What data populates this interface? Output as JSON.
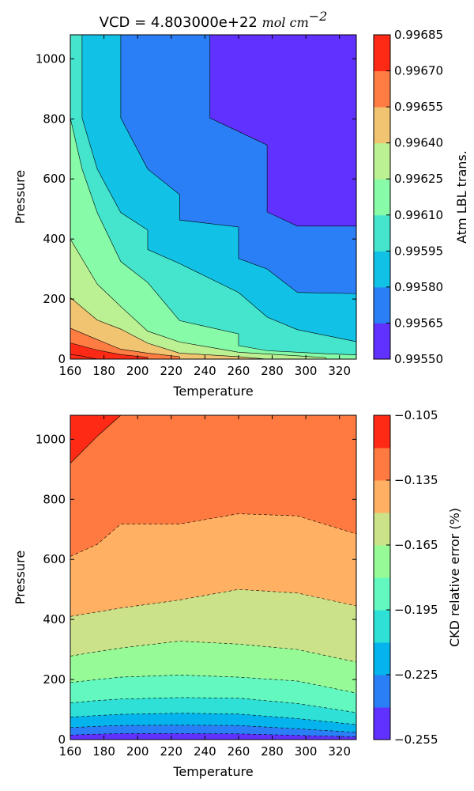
{
  "chart_data": [
    {
      "type": "contourf",
      "title_plain": "VCD = 4.803000e+22 ",
      "title_math": "mol cm",
      "title_exp": "−2",
      "xlabel": "Temperature",
      "ylabel": "Pressure",
      "xlim": [
        160,
        330
      ],
      "ylim": [
        0,
        1080
      ],
      "xticks": [
        "160",
        "180",
        "200",
        "220",
        "240",
        "260",
        "280",
        "300",
        "320"
      ],
      "yticks": [
        "0",
        "200",
        "400",
        "600",
        "800",
        "1000"
      ],
      "colorbar": {
        "label": "Atm LBL trans.",
        "ticks": [
          "0.99550",
          "0.99565",
          "0.99580",
          "0.99595",
          "0.99610",
          "0.99625",
          "0.99640",
          "0.99655",
          "0.99670",
          "0.99685"
        ],
        "colors": [
          "#6131ff",
          "#2b7ff6",
          "#12c2e6",
          "#45e5cd",
          "#87fba7",
          "#bbf093",
          "#f0c470",
          "#ff7c42",
          "#ff2a16"
        ]
      },
      "contour_levels": [
        {
          "level": 0.99565,
          "points": [
            [
              243,
              1080
            ],
            [
              243,
              803
            ],
            [
              277,
              713
            ],
            [
              277,
              490
            ],
            [
              295,
              443
            ],
            [
              330,
              443
            ]
          ]
        },
        {
          "level": 0.9958,
          "points": [
            [
              190,
              1080
            ],
            [
              190,
              803
            ],
            [
              206,
              633
            ],
            [
              225,
              548
            ],
            [
              225,
              463
            ],
            [
              260,
              440
            ],
            [
              260,
              335
            ],
            [
              277,
              300
            ],
            [
              295,
              222
            ],
            [
              330,
              218
            ]
          ]
        },
        {
          "level": 0.99595,
          "points": [
            [
              167,
              1080
            ],
            [
              167,
              803
            ],
            [
              176,
              633
            ],
            [
              190,
              488
            ],
            [
              206,
              430
            ],
            [
              206,
              365
            ],
            [
              225,
              318
            ],
            [
              260,
              222
            ],
            [
              277,
              140
            ],
            [
              295,
              98
            ],
            [
              330,
              58
            ]
          ]
        },
        {
          "level": 0.9961,
          "points": [
            [
              160,
              1080
            ],
            [
              160,
              803
            ],
            [
              167,
              633
            ],
            [
              176,
              488
            ],
            [
              190,
              325
            ],
            [
              206,
              255
            ],
            [
              225,
              128
            ],
            [
              260,
              84
            ],
            [
              260,
              45
            ],
            [
              277,
              28
            ],
            [
              312,
              18
            ],
            [
              330,
              14
            ]
          ]
        },
        {
          "level": 0.99625,
          "points": [
            [
              160,
              400
            ],
            [
              176,
              250
            ],
            [
              190,
              175
            ],
            [
              206,
              93
            ],
            [
              225,
              57
            ],
            [
              260,
              23
            ],
            [
              312,
              5
            ],
            [
              312,
              0
            ]
          ]
        },
        {
          "level": 0.9964,
          "points": [
            [
              160,
              205
            ],
            [
              176,
              130
            ],
            [
              190,
              100
            ],
            [
              206,
              53
            ],
            [
              225,
              20
            ],
            [
              260,
              8
            ],
            [
              277,
              0
            ]
          ]
        },
        {
          "level": 0.99655,
          "points": [
            [
              160,
              103
            ],
            [
              176,
              65
            ],
            [
              190,
              33
            ],
            [
              206,
              20
            ],
            [
              225,
              8
            ],
            [
              225,
              0
            ]
          ]
        },
        {
          "level": 0.9967,
          "points": [
            [
              160,
              54
            ],
            [
              176,
              30
            ],
            [
              190,
              15
            ],
            [
              206,
              6
            ],
            [
              206,
              0
            ]
          ]
        },
        {
          "level": 0.99685,
          "points": [
            [
              160,
              16
            ],
            [
              167,
              10
            ],
            [
              176,
              0
            ]
          ]
        }
      ]
    },
    {
      "type": "contourf",
      "xlabel": "Temperature",
      "ylabel": "Pressure",
      "xlim": [
        160,
        330
      ],
      "ylim": [
        0,
        1080
      ],
      "xticks": [
        "160",
        "180",
        "200",
        "220",
        "240",
        "260",
        "280",
        "300",
        "320"
      ],
      "yticks": [
        "0",
        "200",
        "400",
        "600",
        "800",
        "1000"
      ],
      "colorbar": {
        "label": "CKD relative error (%)",
        "ticks": [
          "−0.105",
          "−0.135",
          "−0.165",
          "−0.195",
          "−0.225",
          "−0.255"
        ],
        "tick_values": [
          -0.105,
          -0.135,
          -0.165,
          -0.195,
          -0.225,
          -0.255
        ],
        "colors": [
          "#6131ff",
          "#2b7ff6",
          "#05b4ec",
          "#2ee0d6",
          "#62f8bf",
          "#96fb96",
          "#cbe289",
          "#ffb062",
          "#ff7a40",
          "#ff2a16"
        ],
        "range": [
          -0.255,
          -0.105
        ]
      },
      "contour_levels": [
        {
          "level": -0.12,
          "points": [
            [
              160,
              920
            ],
            [
              176,
              1010
            ],
            [
              190,
              1080
            ]
          ]
        },
        {
          "level": -0.135,
          "points": [
            [
              160,
              610
            ],
            [
              176,
              650
            ],
            [
              190,
              718
            ],
            [
              225,
              718
            ],
            [
              260,
              752
            ],
            [
              295,
              745
            ],
            [
              330,
              685
            ]
          ]
        },
        {
          "level": -0.15,
          "points": [
            [
              160,
              410
            ],
            [
              176,
              425
            ],
            [
              190,
              438
            ],
            [
              225,
              465
            ],
            [
              260,
              500
            ],
            [
              295,
              488
            ],
            [
              330,
              445
            ]
          ]
        },
        {
          "level": -0.165,
          "points": [
            [
              160,
              278
            ],
            [
              176,
              293
            ],
            [
              190,
              305
            ],
            [
              225,
              328
            ],
            [
              260,
              318
            ],
            [
              295,
              300
            ],
            [
              330,
              258
            ]
          ]
        },
        {
          "level": -0.18,
          "points": [
            [
              160,
              190
            ],
            [
              176,
              200
            ],
            [
              190,
              208
            ],
            [
              225,
              215
            ],
            [
              260,
              208
            ],
            [
              295,
              195
            ],
            [
              330,
              155
            ]
          ]
        },
        {
          "level": -0.195,
          "points": [
            [
              160,
              122
            ],
            [
              176,
              130
            ],
            [
              190,
              135
            ],
            [
              225,
              140
            ],
            [
              260,
              138
            ],
            [
              295,
              120
            ],
            [
              330,
              90
            ]
          ]
        },
        {
          "level": -0.21,
          "points": [
            [
              160,
              75
            ],
            [
              176,
              80
            ],
            [
              190,
              84
            ],
            [
              225,
              88
            ],
            [
              260,
              85
            ],
            [
              295,
              70
            ],
            [
              330,
              50
            ]
          ]
        },
        {
          "level": -0.225,
          "points": [
            [
              160,
              40
            ],
            [
              176,
              44
            ],
            [
              190,
              47
            ],
            [
              225,
              48
            ],
            [
              260,
              47
            ],
            [
              295,
              36
            ],
            [
              330,
              24
            ]
          ]
        },
        {
          "level": -0.24,
          "points": [
            [
              160,
              15
            ],
            [
              176,
              18
            ],
            [
              190,
              20
            ],
            [
              225,
              20
            ],
            [
              260,
              19
            ],
            [
              295,
              14
            ],
            [
              330,
              9
            ]
          ]
        }
      ]
    }
  ]
}
